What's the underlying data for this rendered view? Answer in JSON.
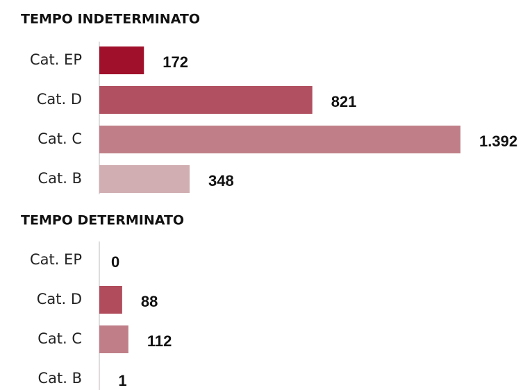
{
  "chart_data": [
    {
      "type": "bar",
      "orientation": "horizontal",
      "title": "TEMPO INDETERMINATO",
      "categories": [
        "Cat. EP",
        "Cat. D",
        "Cat. C",
        "Cat. B"
      ],
      "values": [
        172,
        821,
        1392,
        348
      ],
      "value_labels": [
        "172",
        "821",
        "1.392",
        "348"
      ],
      "colors": [
        "#a0102a",
        "#b05060",
        "#c07f88",
        "#d0aeb2"
      ]
    },
    {
      "type": "bar",
      "orientation": "horizontal",
      "title": "TEMPO DETERMINATO",
      "categories": [
        "Cat. EP",
        "Cat. D",
        "Cat. C",
        "Cat. B"
      ],
      "values": [
        0,
        88,
        112,
        1
      ],
      "colors": [
        "#a0102a",
        "#b04c5c",
        "#c07f88",
        "#d0aeb2"
      ]
    }
  ]
}
